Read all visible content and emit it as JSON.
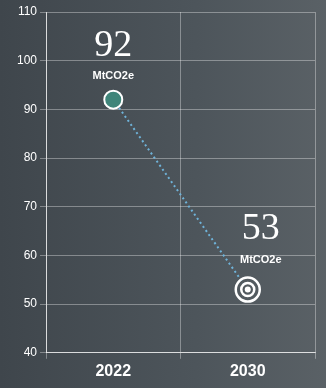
{
  "chart_data": {
    "type": "line",
    "categories": [
      "2022",
      "2030"
    ],
    "values": [
      92,
      53
    ],
    "value_labels": [
      "92\nMtCO2e",
      "53\nMtCO2e"
    ],
    "data_labels": true,
    "color": "#6fb3d9",
    "colors": [
      "#3f857a",
      "#ffffff"
    ],
    "marker": "circle",
    "line_style": "dotted",
    "ylim": [
      40,
      110
    ],
    "yticks": [
      40,
      50,
      60,
      70,
      80,
      90,
      100,
      110
    ],
    "grid": true
  }
}
